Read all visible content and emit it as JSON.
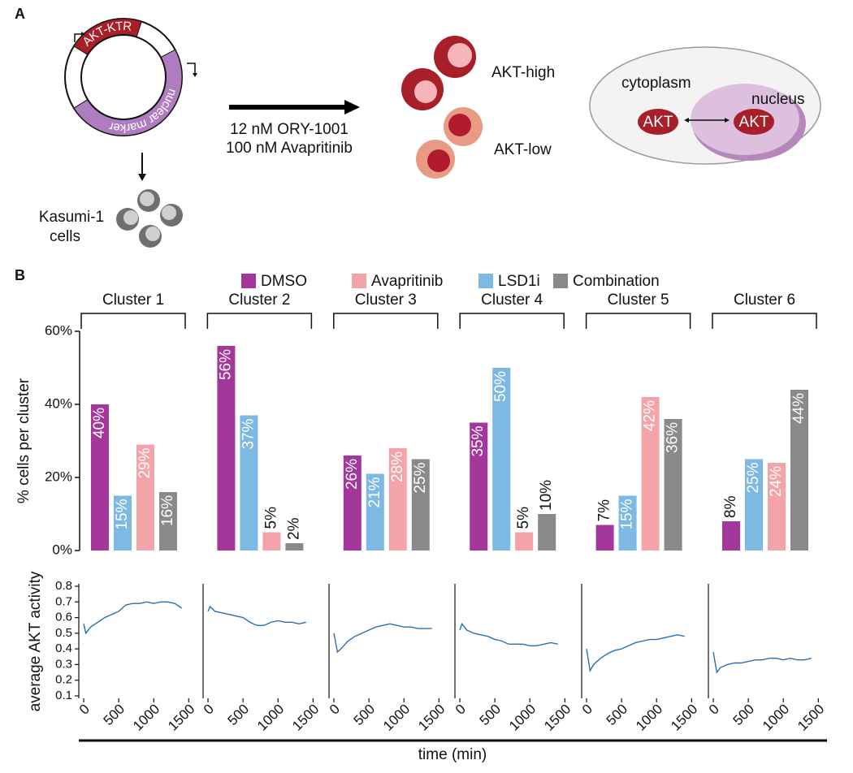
{
  "panel_labels": {
    "a": "A",
    "b": "B"
  },
  "diagram": {
    "plasmid": {
      "reporter": "AKT-KTR",
      "marker": "nuclear marker"
    },
    "cells_label": [
      "Kasumi-1",
      "cells"
    ],
    "treatment": [
      "12 nM ORY-1001",
      "100 nM Avapritinib"
    ],
    "states": [
      "AKT-high",
      "AKT-low"
    ],
    "cell_model": {
      "cytoplasm": "cytoplasm",
      "nucleus": "nucleus",
      "akt_cytoplasm": "AKT",
      "akt_nucleus": "AKT"
    }
  },
  "chart_data": [
    {
      "type": "bar",
      "ylabel": "% cells per cluster",
      "categories": [
        "Cluster 1",
        "Cluster 2",
        "Cluster 3",
        "Cluster 4",
        "Cluster 5",
        "Cluster 6"
      ],
      "series": [
        {
          "name": "DMSO",
          "color": "#a4379a",
          "values": [
            40,
            56,
            26,
            35,
            7,
            8
          ],
          "value_labels": [
            "40%",
            "56%",
            "26%",
            "35%",
            "7%",
            "8%"
          ]
        },
        {
          "name": "Avapritinib",
          "color": "#f4a3a8",
          "values": [
            29,
            5,
            28,
            5,
            42,
            24
          ],
          "value_labels": [
            "29%",
            "5%",
            "28%",
            "5%",
            "42%",
            "24%"
          ]
        },
        {
          "name": "LSD1i",
          "color": "#7db9e3",
          "values": [
            15,
            37,
            21,
            50,
            15,
            25
          ],
          "value_labels": [
            "15%",
            "37%",
            "21%",
            "50%",
            "15%",
            "25%"
          ]
        },
        {
          "name": "Combination",
          "color": "#8a8a8a",
          "values": [
            16,
            2,
            25,
            10,
            36,
            44
          ],
          "value_labels": [
            "16%",
            "2%",
            "25%",
            "10%",
            "36%",
            "44%"
          ]
        }
      ],
      "ylim": [
        0,
        60
      ],
      "yticks": [
        {
          "value": 0,
          "label": "0%"
        },
        {
          "value": 20,
          "label": "20%"
        },
        {
          "value": 40,
          "label": "40%"
        },
        {
          "value": 60,
          "label": "60%"
        }
      ]
    },
    {
      "type": "line",
      "ylabel": "average AKT activity",
      "xlabel": "time (min)",
      "x": [
        0,
        30,
        100,
        200,
        300,
        400,
        500,
        600,
        700,
        800,
        900,
        1000,
        1100,
        1200,
        1300,
        1400
      ],
      "series": [
        {
          "color": "#2a6fb0",
          "values": [
            0.56,
            0.5,
            0.54,
            0.57,
            0.6,
            0.62,
            0.64,
            0.68,
            0.69,
            0.69,
            0.7,
            0.69,
            0.7,
            0.7,
            0.69,
            0.66
          ]
        }
      ],
      "xlim": [
        -70,
        1670
      ],
      "ylim": [
        0.1,
        0.8
      ],
      "xticks": [
        0,
        500,
        1000,
        1500
      ],
      "yticks": [
        0.1,
        0.2,
        0.3,
        0.4,
        0.5,
        0.6,
        0.7,
        0.8
      ]
    },
    {
      "type": "line",
      "x": [
        0,
        30,
        100,
        200,
        300,
        400,
        500,
        600,
        700,
        800,
        900,
        1000,
        1100,
        1200,
        1300,
        1400
      ],
      "series": [
        {
          "color": "#2a6fb0",
          "values": [
            0.64,
            0.67,
            0.64,
            0.63,
            0.62,
            0.61,
            0.6,
            0.57,
            0.55,
            0.55,
            0.57,
            0.58,
            0.57,
            0.57,
            0.56,
            0.57
          ]
        }
      ],
      "xlim": [
        -70,
        1670
      ],
      "ylim": [
        0.1,
        0.8
      ],
      "xticks": [
        0,
        500,
        1000,
        1500
      ]
    },
    {
      "type": "line",
      "x": [
        0,
        50,
        100,
        200,
        300,
        400,
        500,
        600,
        700,
        800,
        900,
        1000,
        1100,
        1200,
        1300,
        1400
      ],
      "series": [
        {
          "color": "#2a6fb0",
          "values": [
            0.5,
            0.38,
            0.4,
            0.45,
            0.48,
            0.5,
            0.52,
            0.54,
            0.55,
            0.56,
            0.55,
            0.54,
            0.54,
            0.53,
            0.53,
            0.53
          ]
        }
      ],
      "xlim": [
        -70,
        1670
      ],
      "ylim": [
        0.1,
        0.8
      ],
      "xticks": [
        0,
        500,
        1000,
        1500
      ]
    },
    {
      "type": "line",
      "x": [
        0,
        30,
        100,
        200,
        300,
        400,
        500,
        600,
        700,
        800,
        900,
        1000,
        1100,
        1200,
        1300,
        1400
      ],
      "series": [
        {
          "color": "#2a6fb0",
          "values": [
            0.52,
            0.56,
            0.52,
            0.5,
            0.49,
            0.48,
            0.46,
            0.45,
            0.43,
            0.43,
            0.43,
            0.42,
            0.42,
            0.43,
            0.44,
            0.43
          ]
        }
      ],
      "xlim": [
        -70,
        1670
      ],
      "ylim": [
        0.1,
        0.8
      ],
      "xticks": [
        0,
        500,
        1000,
        1500
      ]
    },
    {
      "type": "line",
      "x": [
        0,
        50,
        100,
        200,
        300,
        400,
        500,
        600,
        700,
        800,
        900,
        1000,
        1100,
        1200,
        1300,
        1400
      ],
      "series": [
        {
          "color": "#2a6fb0",
          "values": [
            0.4,
            0.26,
            0.3,
            0.34,
            0.37,
            0.39,
            0.4,
            0.42,
            0.44,
            0.45,
            0.46,
            0.46,
            0.47,
            0.48,
            0.49,
            0.48
          ]
        }
      ],
      "xlim": [
        -70,
        1670
      ],
      "ylim": [
        0.1,
        0.8
      ],
      "xticks": [
        0,
        500,
        1000,
        1500
      ]
    },
    {
      "type": "line",
      "x": [
        0,
        50,
        100,
        200,
        300,
        400,
        500,
        600,
        700,
        800,
        900,
        1000,
        1100,
        1200,
        1300,
        1400
      ],
      "series": [
        {
          "color": "#2a6fb0",
          "values": [
            0.38,
            0.25,
            0.28,
            0.3,
            0.31,
            0.31,
            0.32,
            0.33,
            0.33,
            0.34,
            0.34,
            0.33,
            0.34,
            0.33,
            0.33,
            0.34
          ]
        }
      ],
      "xlim": [
        -70,
        1670
      ],
      "ylim": [
        0.1,
        0.8
      ],
      "xticks": [
        0,
        500,
        1000,
        1500
      ]
    }
  ]
}
